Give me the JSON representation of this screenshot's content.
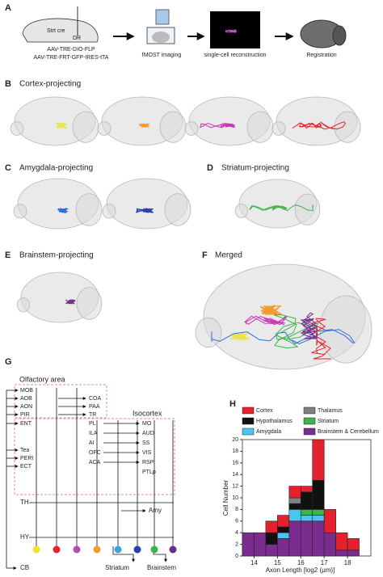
{
  "panel_A": {
    "letter": "A",
    "strain": "Strt cre",
    "site": "DR",
    "virus_1": "AAV-TRE-DIO-FLP",
    "virus_2": "AAV-TRE-FRT-GFP-IRES-tTA",
    "step_1": "fMOST imaging",
    "step_2": "single-cell reconstruction",
    "step_3": "Registration"
  },
  "panel_B": {
    "letter": "B",
    "title": "Cortex-projecting"
  },
  "panel_C": {
    "letter": "C",
    "title": "Amygdala-projecting"
  },
  "panel_D": {
    "letter": "D",
    "title": "Striatum-projecting"
  },
  "panel_E": {
    "letter": "E",
    "title": "Brainstem-projecting"
  },
  "panel_F": {
    "letter": "F",
    "title": "Merged"
  },
  "panel_G": {
    "letter": "G",
    "olfactory_area": "Olfactory area",
    "isocortex": "Isocortex",
    "olfactory_left": [
      "MOB",
      "AOB",
      "AON",
      "PIR"
    ],
    "olfactory_right": [
      "COA",
      "PAA",
      "TR"
    ],
    "ent": "ENT",
    "prefrontal": [
      "PL",
      "ILA",
      "AI",
      "OFC",
      "ACA"
    ],
    "sensory": [
      "MO",
      "AUD",
      "SS",
      "VIS",
      "RSP",
      "PTLp"
    ],
    "temporal": [
      "Tea",
      "PERI",
      "ECT"
    ],
    "th": "TH",
    "hy": "HY",
    "amy": "Amy",
    "cb": "CB",
    "striatum": "Striatum",
    "brainstem": "Brainstem"
  },
  "chart_data": {
    "type": "histogram",
    "letter": "H",
    "x_label": "Axon Length [log2 (μm)]",
    "y_label": "Cell Number",
    "bins": [
      13.5,
      14,
      14.5,
      15,
      15.5,
      16,
      16.5,
      17,
      17.5,
      18,
      18.5
    ],
    "series": [
      {
        "name": "Cortex",
        "color": "#e3212f",
        "values": [
          0,
          0,
          2,
          2,
          2,
          1,
          7,
          4,
          3,
          2
        ]
      },
      {
        "name": "Thalamus",
        "color": "#808080",
        "values": [
          0,
          0,
          0,
          0,
          1,
          0,
          0,
          0,
          0,
          0
        ]
      },
      {
        "name": "Hypothalamus",
        "color": "#111111",
        "values": [
          0,
          0,
          2,
          1,
          1,
          3,
          5,
          0,
          0,
          0
        ]
      },
      {
        "name": "Striatum",
        "color": "#3cb449",
        "values": [
          0,
          0,
          0,
          0,
          0,
          1,
          1,
          0,
          0,
          0
        ]
      },
      {
        "name": "Amygdala",
        "color": "#4cc4ef",
        "values": [
          0,
          0,
          0,
          1,
          2,
          1,
          1,
          0,
          0,
          0
        ]
      },
      {
        "name": "Brainstem & Cerebellum",
        "color": "#7a2d8e",
        "values": [
          4,
          4,
          2,
          3,
          6,
          6,
          6,
          4,
          1,
          1
        ]
      }
    ],
    "xlim": [
      13.5,
      19
    ],
    "xticks": [
      14,
      15,
      16,
      17,
      18
    ],
    "ylim": [
      0,
      20
    ],
    "yticks": [
      0,
      2,
      4,
      6,
      8,
      10,
      12,
      14,
      16,
      18,
      20
    ]
  }
}
